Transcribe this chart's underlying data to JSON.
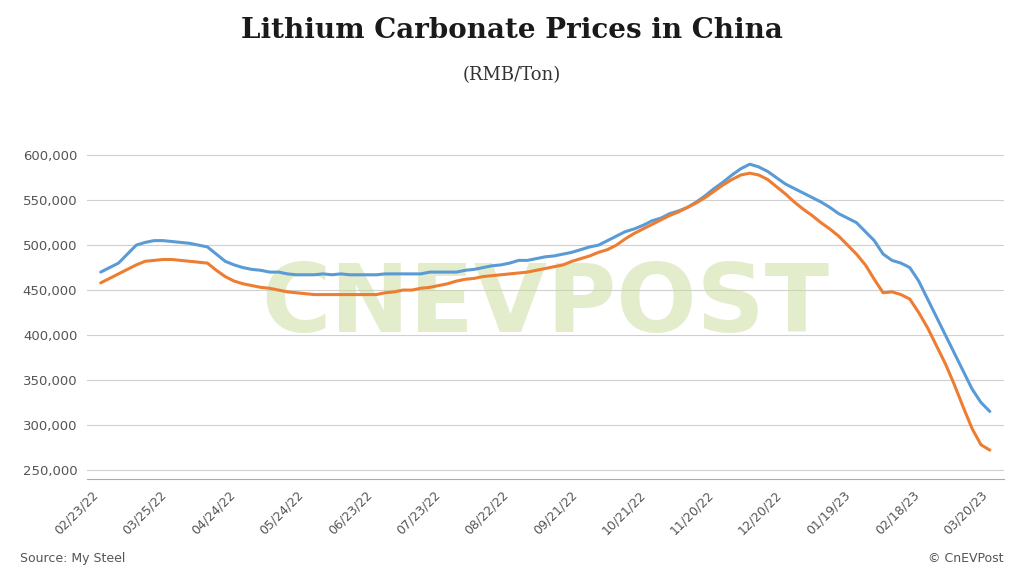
{
  "title": "Lithium Carbonate Prices in China",
  "subtitle": "(RMB/Ton)",
  "source_text": "Source: My Steel",
  "copyright_text": "© CnEVPost",
  "background_color": "#ffffff",
  "watermark_text": "CNEVPOST",
  "x_labels": [
    "02/23/22",
    "03/25/22",
    "04/24/22",
    "05/24/22",
    "06/23/22",
    "07/23/22",
    "08/22/22",
    "09/21/22",
    "10/21/22",
    "11/20/22",
    "12/20/22",
    "01/19/23",
    "02/18/23",
    "03/20/23"
  ],
  "ylim": [
    240000,
    625000
  ],
  "yticks": [
    250000,
    300000,
    350000,
    400000,
    450000,
    500000,
    550000,
    600000
  ],
  "battery_grade_color": "#5b9bd5",
  "industrial_grade_color": "#ed7d31",
  "grid_color": "#d0d0d0",
  "battery_grade": {
    "y": [
      470000,
      475000,
      480000,
      490000,
      500000,
      503000,
      505000,
      505000,
      504000,
      503000,
      502000,
      500000,
      498000,
      490000,
      482000,
      478000,
      475000,
      473000,
      472000,
      470000,
      470000,
      468000,
      467000,
      467000,
      467000,
      468000,
      467000,
      468000,
      467000,
      467000,
      467000,
      467000,
      468000,
      468000,
      468000,
      468000,
      468000,
      470000,
      470000,
      470000,
      470000,
      472000,
      473000,
      475000,
      477000,
      478000,
      480000,
      483000,
      483000,
      485000,
      487000,
      488000,
      490000,
      492000,
      495000,
      498000,
      500000,
      505000,
      510000,
      515000,
      518000,
      522000,
      527000,
      530000,
      535000,
      538000,
      542000,
      548000,
      555000,
      563000,
      570000,
      578000,
      585000,
      590000,
      587000,
      582000,
      575000,
      568000,
      563000,
      558000,
      553000,
      548000,
      542000,
      535000,
      530000,
      525000,
      515000,
      505000,
      490000,
      483000,
      480000,
      475000,
      460000,
      440000,
      420000,
      400000,
      380000,
      360000,
      340000,
      325000,
      315000
    ]
  },
  "industrial_grade": {
    "y": [
      458000,
      463000,
      468000,
      473000,
      478000,
      482000,
      483000,
      484000,
      484000,
      483000,
      482000,
      481000,
      480000,
      472000,
      465000,
      460000,
      457000,
      455000,
      453000,
      452000,
      450000,
      448000,
      447000,
      446000,
      445000,
      445000,
      445000,
      445000,
      445000,
      445000,
      445000,
      445000,
      447000,
      448000,
      450000,
      450000,
      452000,
      453000,
      455000,
      457000,
      460000,
      462000,
      463000,
      465000,
      466000,
      467000,
      468000,
      469000,
      470000,
      472000,
      474000,
      476000,
      478000,
      482000,
      485000,
      488000,
      492000,
      495000,
      500000,
      507000,
      513000,
      518000,
      523000,
      528000,
      533000,
      537000,
      542000,
      547000,
      553000,
      560000,
      567000,
      573000,
      578000,
      580000,
      578000,
      573000,
      565000,
      557000,
      548000,
      540000,
      533000,
      525000,
      518000,
      510000,
      500000,
      490000,
      478000,
      462000,
      447000,
      448000,
      445000,
      440000,
      425000,
      408000,
      388000,
      368000,
      345000,
      320000,
      296000,
      278000,
      272000
    ]
  }
}
